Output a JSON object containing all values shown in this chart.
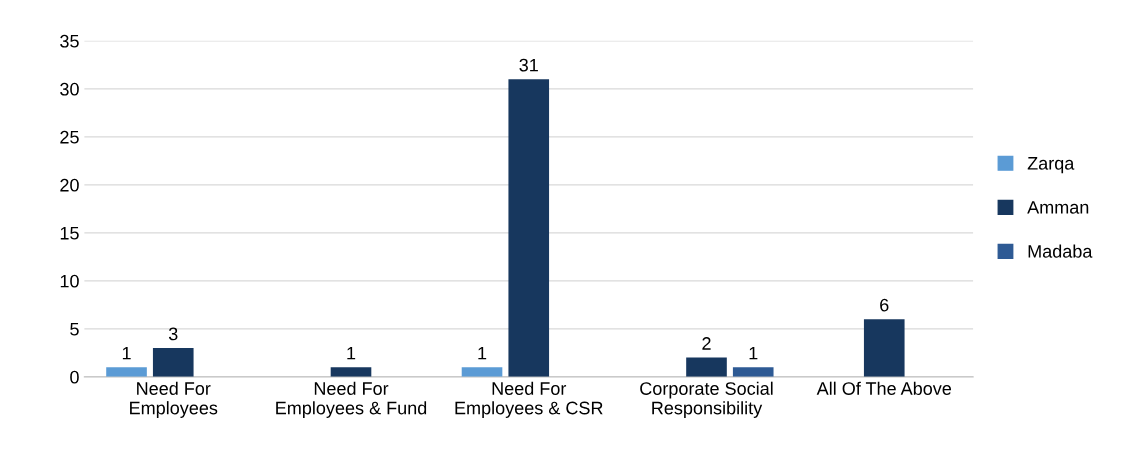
{
  "chart_data": {
    "type": "bar",
    "categories": [
      "Need For\nEmployees",
      "Need For\nEmployees & Fund",
      "Need For\nEmployees & CSR",
      "Corporate Social\nResponsibility",
      "All Of The Above"
    ],
    "series": [
      {
        "name": "Zarqa",
        "color": "#5b9bd5",
        "values": [
          1,
          null,
          1,
          null,
          null
        ]
      },
      {
        "name": "Amman",
        "color": "#17375e",
        "values": [
          3,
          1,
          31,
          2,
          6
        ]
      },
      {
        "name": "Madaba",
        "color": "#2e5a94",
        "values": [
          null,
          null,
          null,
          1,
          null
        ]
      }
    ],
    "ylim": [
      0,
      35
    ],
    "yticks": [
      0,
      5,
      10,
      15,
      20,
      25,
      30,
      35
    ],
    "grid": "y",
    "legend": "right",
    "data_labels": true
  }
}
